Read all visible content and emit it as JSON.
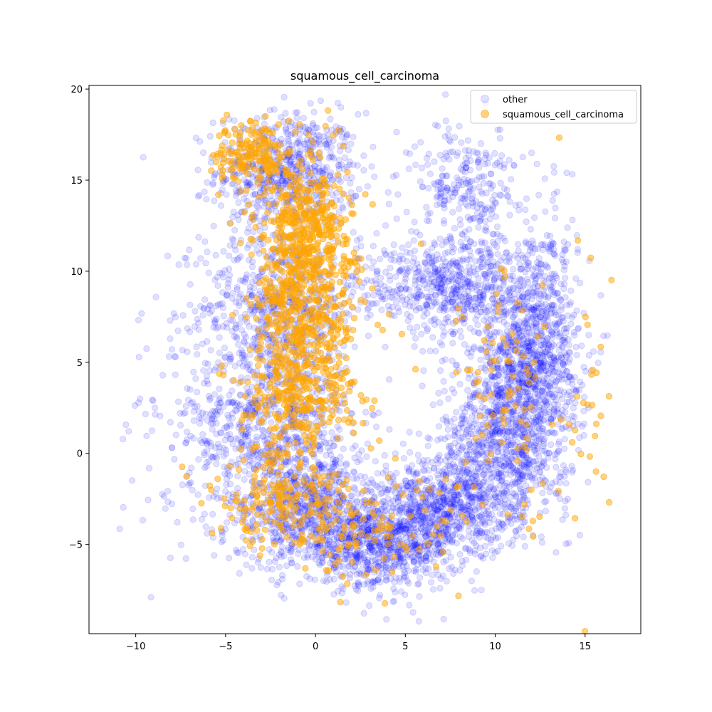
{
  "chart_data": {
    "type": "scatter",
    "title": "squamous_cell_carcinoma",
    "xlabel": "",
    "ylabel": "",
    "xlim": [
      -12.6,
      18.1
    ],
    "ylim": [
      -9.9,
      20.2
    ],
    "x_ticks": [
      -10,
      -5,
      0,
      5,
      10,
      15
    ],
    "x_tick_labels": [
      "−10",
      "−5",
      "0",
      "5",
      "10",
      "15"
    ],
    "y_ticks": [
      -5,
      0,
      5,
      10,
      15,
      20
    ],
    "y_tick_labels": [
      "−5",
      "0",
      "5",
      "10",
      "15",
      "20"
    ],
    "grid": false,
    "legend_position": "top-right",
    "series": [
      {
        "name": "other",
        "color": "#0000ff",
        "alpha": 0.12,
        "clusters": [
          {
            "region": "upper-left arm",
            "cx": -1.5,
            "cy": 15.5,
            "sx": 2.0,
            "sy": 1.6,
            "n": 650
          },
          {
            "region": "left mid band",
            "cx": -2.0,
            "cy": 8.0,
            "sx": 2.2,
            "sy": 2.4,
            "n": 700
          },
          {
            "region": "left lower band",
            "cx": -2.5,
            "cy": 1.5,
            "sx": 2.3,
            "sy": 2.2,
            "n": 650
          },
          {
            "region": "bottom-left",
            "cx": -0.5,
            "cy": -3.0,
            "sx": 2.5,
            "sy": 1.6,
            "n": 700
          },
          {
            "region": "bottom-center",
            "cx": 3.5,
            "cy": -5.0,
            "sx": 2.2,
            "sy": 1.2,
            "n": 750
          },
          {
            "region": "bottom-right",
            "cx": 7.5,
            "cy": -3.0,
            "sx": 2.0,
            "sy": 1.4,
            "n": 650
          },
          {
            "region": "right lower",
            "cx": 10.5,
            "cy": 0.5,
            "sx": 1.8,
            "sy": 2.0,
            "n": 750
          },
          {
            "region": "right mid",
            "cx": 11.5,
            "cy": 5.0,
            "sx": 1.6,
            "sy": 2.0,
            "n": 700
          },
          {
            "region": "upper-right lobe",
            "cx": 8.0,
            "cy": 9.2,
            "sx": 2.8,
            "sy": 1.3,
            "n": 650
          },
          {
            "region": "top-right cluster",
            "cx": 8.5,
            "cy": 14.5,
            "sx": 1.5,
            "sy": 1.8,
            "n": 280
          },
          {
            "region": "right edge",
            "cx": 13.0,
            "cy": 7.0,
            "sx": 0.8,
            "sy": 3.0,
            "n": 220
          },
          {
            "region": "left scattered outliers",
            "cx": -8.0,
            "cy": 2.0,
            "sx": 1.6,
            "sy": 4.0,
            "n": 70
          }
        ]
      },
      {
        "name": "squamous_cell_carcinoma",
        "color": "#ffa500",
        "alpha": 0.5,
        "clusters": [
          {
            "region": "top-left tail",
            "cx": -3.5,
            "cy": 16.5,
            "sx": 1.0,
            "sy": 0.9,
            "n": 160
          },
          {
            "region": "central column upper",
            "cx": -0.5,
            "cy": 12.5,
            "sx": 1.3,
            "sy": 2.0,
            "n": 420
          },
          {
            "region": "central column mid",
            "cx": -0.5,
            "cy": 7.5,
            "sx": 1.5,
            "sy": 2.0,
            "n": 380
          },
          {
            "region": "central column lower",
            "cx": -1.0,
            "cy": 3.0,
            "sx": 1.6,
            "sy": 1.6,
            "n": 260
          },
          {
            "region": "bottom-left band",
            "cx": -2.0,
            "cy": -2.5,
            "sx": 2.0,
            "sy": 1.3,
            "n": 180
          },
          {
            "region": "bottom band",
            "cx": 3.0,
            "cy": -4.5,
            "sx": 2.5,
            "sy": 1.5,
            "n": 110
          },
          {
            "region": "right band",
            "cx": 10.5,
            "cy": 3.0,
            "sx": 1.8,
            "sy": 3.5,
            "n": 90
          },
          {
            "region": "right outliers",
            "cx": 15.5,
            "cy": 3.0,
            "sx": 0.9,
            "sy": 4.5,
            "n": 28
          }
        ]
      }
    ]
  },
  "legend": {
    "items": [
      {
        "label": "other",
        "color": "#0000ff",
        "alpha": 0.12
      },
      {
        "label": "squamous_cell_carcinoma",
        "color": "#ffa500",
        "alpha": 0.5
      }
    ]
  }
}
